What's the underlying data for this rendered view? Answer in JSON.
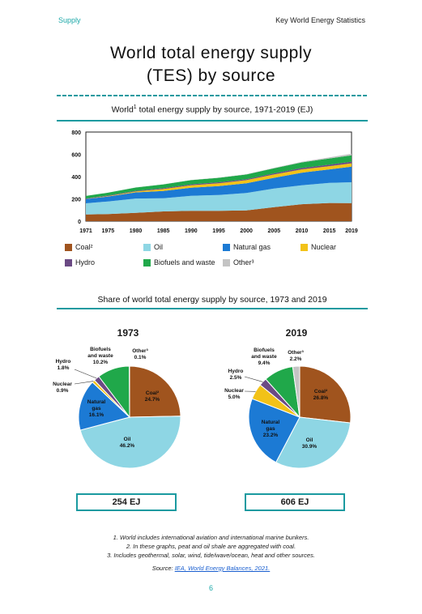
{
  "header": {
    "section": "Supply",
    "publication": "Key World Energy Statistics"
  },
  "title_line1": "World total energy supply",
  "title_line2": "(TES) by source",
  "chart1_title": {
    "prefix": "World",
    "sup": "1",
    "rest": " total energy supply by source, 1971-2019 (EJ)"
  },
  "chart2_title": "Share of world total energy supply by source, 1973 and 2019",
  "colors": {
    "Coal": "#a0541e",
    "Oil": "#8ed6e4",
    "Natural gas": "#1c7ad4",
    "Nuclear": "#f2c218",
    "Hydro": "#6b4a84",
    "Biofuels and waste": "#20a84a",
    "Other": "#c4c4c4",
    "accent": "#1a9aa0"
  },
  "chart_data": [
    {
      "type": "area",
      "title": "World total energy supply by source, 1971-2019 (EJ)",
      "ylim": [
        0,
        800
      ],
      "y_ticks": [
        "0",
        "200",
        "400",
        "600",
        "800"
      ],
      "x_ticks": [
        "1971",
        "1975",
        "1980",
        "1985",
        "1990",
        "1995",
        "2000",
        "2005",
        "2010",
        "2015",
        "2019"
      ],
      "x": [
        1971,
        1975,
        1980,
        1985,
        1990,
        1995,
        2000,
        2005,
        2010,
        2015,
        2019
      ],
      "series": [
        {
          "name": "Coal",
          "label": "Coal²",
          "values": [
            60,
            64,
            75,
            87,
            93,
            93,
            97,
            125,
            152,
            163,
            162
          ]
        },
        {
          "name": "Oil",
          "label": "Oil",
          "values": [
            100,
            113,
            128,
            119,
            135,
            142,
            155,
            167,
            170,
            180,
            187
          ]
        },
        {
          "name": "Natural gas",
          "label": "Natural gas",
          "values": [
            38,
            44,
            55,
            65,
            72,
            80,
            88,
            97,
            113,
            122,
            140
          ]
        },
        {
          "name": "Nuclear",
          "label": "Nuclear",
          "values": [
            1,
            4,
            8,
            17,
            22,
            25,
            28,
            30,
            30,
            29,
            30
          ]
        },
        {
          "name": "Hydro",
          "label": "Hydro",
          "values": [
            4,
            5,
            6,
            7,
            8,
            9,
            9,
            10,
            12,
            14,
            15
          ]
        },
        {
          "name": "Biofuels and waste",
          "label": "Biofuels and waste",
          "values": [
            23,
            25,
            30,
            35,
            38,
            40,
            42,
            45,
            50,
            55,
            57
          ]
        },
        {
          "name": "Other",
          "label": "Other³",
          "values": [
            0.2,
            0.3,
            0.5,
            1,
            1.5,
            2,
            3,
            4,
            6,
            10,
            14
          ]
        }
      ],
      "legend_position": "bottom"
    },
    {
      "type": "pie",
      "title": "1973",
      "total": "254 EJ",
      "slices": [
        {
          "name": "Coal",
          "label": "Coal²",
          "value": 24.7,
          "text": "24.7%"
        },
        {
          "name": "Oil",
          "label": "Oil",
          "value": 46.2,
          "text": "46.2%"
        },
        {
          "name": "Natural gas",
          "label": "Natural gas",
          "value": 16.1,
          "text": "16.1%"
        },
        {
          "name": "Nuclear",
          "label": "Nuclear",
          "value": 0.9,
          "text": "0.9%"
        },
        {
          "name": "Hydro",
          "label": "Hydro",
          "value": 1.8,
          "text": "1.8%"
        },
        {
          "name": "Biofuels and waste",
          "label": "Biofuels and waste",
          "value": 10.2,
          "text": "10.2%"
        },
        {
          "name": "Other",
          "label": "Other³",
          "value": 0.1,
          "text": "0.1%"
        }
      ]
    },
    {
      "type": "pie",
      "title": "2019",
      "total": "606 EJ",
      "slices": [
        {
          "name": "Coal",
          "label": "Coal²",
          "value": 26.8,
          "text": "26.8%"
        },
        {
          "name": "Oil",
          "label": "Oil",
          "value": 30.9,
          "text": "30.9%"
        },
        {
          "name": "Natural gas",
          "label": "Natural gas",
          "value": 23.2,
          "text": "23.2%"
        },
        {
          "name": "Nuclear",
          "label": "Nuclear",
          "value": 5.0,
          "text": "5.0%"
        },
        {
          "name": "Hydro",
          "label": "Hydro",
          "value": 2.5,
          "text": "2.5%"
        },
        {
          "name": "Biofuels and waste",
          "label": "Biofuels and waste",
          "value": 9.4,
          "text": "9.4%"
        },
        {
          "name": "Other",
          "label": "Other³",
          "value": 2.2,
          "text": "2.2%"
        }
      ]
    }
  ],
  "footnotes": [
    "1. World includes international aviation and international marine bunkers.",
    "2. In these graphs, peat and oil shale are aggregated with coal.",
    "3. Includes geothermal, solar, wind, tide/wave/ocean, heat and other sources."
  ],
  "source_prefix": "Source: ",
  "source_link": "IEA, World Energy Balances, 2021.",
  "page_number": "6"
}
